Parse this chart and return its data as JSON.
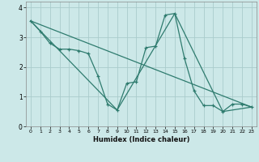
{
  "xlabel": "Humidex (Indice chaleur)",
  "bg_color": "#cce8e8",
  "grid_color": "#aacccc",
  "line_color": "#2e7b6e",
  "xlim": [
    -0.5,
    23.5
  ],
  "ylim": [
    0,
    4.2
  ],
  "xticks": [
    0,
    1,
    2,
    3,
    4,
    5,
    6,
    7,
    8,
    9,
    10,
    11,
    12,
    13,
    14,
    15,
    16,
    17,
    18,
    19,
    20,
    21,
    22,
    23
  ],
  "yticks": [
    0,
    1,
    2,
    3,
    4
  ],
  "series1": [
    [
      0,
      3.55
    ],
    [
      1,
      3.2
    ],
    [
      2,
      2.8
    ],
    [
      3,
      2.6
    ],
    [
      4,
      2.6
    ],
    [
      5,
      2.55
    ],
    [
      6,
      2.45
    ],
    [
      7,
      1.7
    ],
    [
      8,
      0.75
    ],
    [
      9,
      0.55
    ],
    [
      10,
      1.45
    ],
    [
      11,
      1.5
    ],
    [
      12,
      2.65
    ],
    [
      13,
      2.7
    ],
    [
      14,
      3.75
    ],
    [
      15,
      3.8
    ],
    [
      16,
      2.3
    ],
    [
      17,
      1.2
    ],
    [
      18,
      0.7
    ],
    [
      19,
      0.7
    ],
    [
      20,
      0.5
    ],
    [
      21,
      0.75
    ],
    [
      22,
      0.75
    ],
    [
      23,
      0.65
    ]
  ],
  "series2": [
    [
      0,
      3.55
    ],
    [
      9,
      0.55
    ],
    [
      15,
      3.8
    ],
    [
      20,
      0.5
    ],
    [
      23,
      0.65
    ]
  ],
  "series3": [
    [
      0,
      3.55
    ],
    [
      23,
      0.65
    ]
  ]
}
